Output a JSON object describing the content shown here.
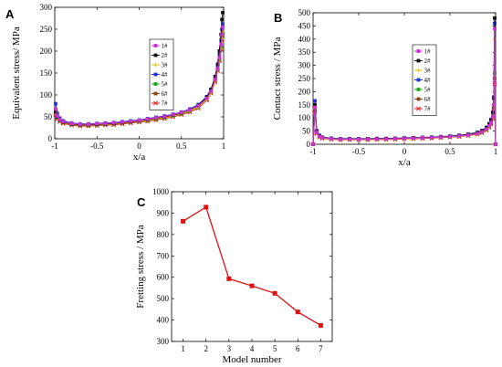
{
  "chart_data": [
    {
      "panel": "A",
      "type": "line",
      "xlabel": "x/a",
      "ylabel": "Equivalent stress/ MPa",
      "xlim": [
        -1,
        1
      ],
      "ylim": [
        0,
        300
      ],
      "xticks": [
        "-1",
        "-0.5",
        "0",
        "0.5",
        "1"
      ],
      "yticks": [
        "0",
        "50",
        "100",
        "150",
        "200",
        "250",
        "300"
      ],
      "grid": false,
      "legend_position": "center-right",
      "x": [
        -0.99,
        -0.97,
        -0.94,
        -0.9,
        -0.8,
        -0.7,
        -0.6,
        -0.5,
        -0.4,
        -0.3,
        -0.2,
        -0.1,
        0,
        0.1,
        0.2,
        0.3,
        0.4,
        0.5,
        0.6,
        0.7,
        0.8,
        0.85,
        0.9,
        0.93,
        0.95,
        0.97,
        0.98,
        0.99
      ],
      "series": [
        {
          "name": "1#",
          "color": "#cc33cc",
          "values": [
            68,
            52,
            44,
            39,
            35,
            33,
            33,
            34,
            35,
            36,
            38,
            40,
            42,
            45,
            48,
            51,
            55,
            60,
            66,
            75,
            92,
            108,
            135,
            160,
            185,
            215,
            238,
            255
          ]
        },
        {
          "name": "2#",
          "color": "#111111",
          "values": [
            62,
            50,
            43,
            38,
            34,
            32,
            32,
            33,
            34,
            35,
            37,
            39,
            41,
            44,
            47,
            50,
            54,
            59,
            66,
            76,
            95,
            112,
            142,
            170,
            200,
            238,
            272,
            288
          ]
        },
        {
          "name": "3#",
          "color": "#e0c000",
          "values": [
            60,
            48,
            42,
            37,
            33,
            31,
            31,
            32,
            33,
            34,
            36,
            38,
            40,
            42,
            45,
            48,
            52,
            57,
            63,
            72,
            90,
            105,
            132,
            158,
            182,
            205,
            228,
            245
          ]
        },
        {
          "name": "4#",
          "color": "#2233dd",
          "values": [
            80,
            58,
            47,
            41,
            36,
            34,
            34,
            35,
            36,
            37,
            39,
            41,
            43,
            46,
            49,
            52,
            56,
            61,
            68,
            78,
            96,
            113,
            140,
            165,
            192,
            225,
            250,
            262
          ]
        },
        {
          "name": "5#",
          "color": "#22aa22",
          "values": [
            64,
            50,
            43,
            38,
            34,
            32,
            32,
            33,
            34,
            35,
            37,
            39,
            41,
            43,
            46,
            49,
            53,
            58,
            64,
            73,
            91,
            107,
            134,
            158,
            182,
            210,
            230,
            240
          ]
        },
        {
          "name": "6#",
          "color": "#8b4513",
          "values": [
            60,
            48,
            41,
            36,
            32,
            30,
            30,
            31,
            32,
            33,
            35,
            37,
            39,
            41,
            44,
            47,
            51,
            56,
            62,
            71,
            89,
            105,
            132,
            157,
            180,
            208,
            228,
            242
          ]
        },
        {
          "name": "7#",
          "color": "#ee2222",
          "values": [
            55,
            45,
            39,
            35,
            31,
            29,
            29,
            30,
            31,
            32,
            34,
            36,
            38,
            40,
            43,
            46,
            50,
            55,
            61,
            70,
            88,
            104,
            130,
            155,
            178,
            205,
            224,
            236
          ]
        }
      ]
    },
    {
      "panel": "B",
      "type": "line",
      "xlabel": "x/a",
      "ylabel": "Contact stress / MPa",
      "xlim": [
        -1,
        1
      ],
      "ylim": [
        0,
        500
      ],
      "xticks": [
        "-1",
        "-0.5",
        "0",
        "0.5",
        "1"
      ],
      "yticks": [
        "0",
        "50",
        "100",
        "150",
        "200",
        "250",
        "300",
        "350",
        "400",
        "450",
        "500"
      ],
      "grid": false,
      "legend_position": "center-right",
      "x": [
        -1.0,
        -0.98,
        -0.96,
        -0.93,
        -0.9,
        -0.8,
        -0.7,
        -0.6,
        -0.5,
        -0.4,
        -0.3,
        -0.2,
        -0.1,
        0,
        0.1,
        0.2,
        0.3,
        0.4,
        0.5,
        0.6,
        0.7,
        0.8,
        0.85,
        0.9,
        0.93,
        0.95,
        0.97,
        0.98,
        0.99,
        1.0
      ],
      "series": [
        {
          "name": "1#",
          "color": "#cc33cc",
          "values": [
            0,
            140,
            45,
            30,
            25,
            21,
            19,
            19,
            19,
            19,
            20,
            20,
            21,
            22,
            23,
            24,
            25,
            27,
            29,
            31,
            35,
            41,
            47,
            58,
            70,
            82,
            105,
            150,
            440,
            0
          ]
        },
        {
          "name": "2#",
          "color": "#111111",
          "values": [
            0,
            150,
            48,
            32,
            26,
            22,
            20,
            20,
            20,
            20,
            21,
            21,
            22,
            23,
            24,
            25,
            26,
            28,
            30,
            33,
            37,
            44,
            51,
            63,
            77,
            92,
            120,
            175,
            480,
            0
          ]
        },
        {
          "name": "3#",
          "color": "#e0c000",
          "values": [
            0,
            135,
            44,
            29,
            24,
            20,
            18,
            18,
            18,
            18,
            19,
            19,
            20,
            21,
            22,
            23,
            24,
            26,
            28,
            30,
            34,
            40,
            45,
            56,
            68,
            80,
            100,
            145,
            400,
            0
          ]
        },
        {
          "name": "4#",
          "color": "#2233dd",
          "values": [
            0,
            165,
            52,
            34,
            27,
            23,
            21,
            21,
            21,
            21,
            22,
            22,
            23,
            24,
            25,
            26,
            27,
            29,
            31,
            34,
            38,
            45,
            52,
            64,
            78,
            94,
            122,
            180,
            460,
            0
          ]
        },
        {
          "name": "5#",
          "color": "#22aa22",
          "values": [
            0,
            138,
            45,
            30,
            25,
            21,
            19,
            19,
            19,
            19,
            20,
            20,
            21,
            22,
            23,
            24,
            25,
            27,
            29,
            31,
            35,
            41,
            46,
            57,
            69,
            81,
            103,
            148,
            270,
            0
          ]
        },
        {
          "name": "6#",
          "color": "#8b4513",
          "values": [
            0,
            132,
            43,
            29,
            24,
            20,
            18,
            18,
            18,
            18,
            19,
            19,
            20,
            21,
            22,
            23,
            24,
            26,
            28,
            30,
            34,
            40,
            45,
            55,
            67,
            79,
            100,
            142,
            250,
            0
          ]
        },
        {
          "name": "7#",
          "color": "#ee2222",
          "values": [
            0,
            125,
            40,
            27,
            22,
            19,
            17,
            17,
            17,
            17,
            18,
            18,
            19,
            20,
            21,
            22,
            23,
            25,
            27,
            29,
            33,
            38,
            43,
            53,
            64,
            76,
            96,
            135,
            230,
            0
          ]
        }
      ]
    },
    {
      "panel": "C",
      "type": "line",
      "xlabel": "Model number",
      "ylabel": "Fretting stress / MPa",
      "xlim": [
        0.5,
        7.5
      ],
      "ylim": [
        300,
        1000
      ],
      "xticks": [
        "1",
        "2",
        "3",
        "4",
        "5",
        "6",
        "7"
      ],
      "yticks": [
        "300",
        "400",
        "500",
        "600",
        "700",
        "800",
        "900",
        "1000"
      ],
      "grid": false,
      "x": [
        1,
        2,
        3,
        4,
        5,
        6,
        7
      ],
      "series": [
        {
          "color": "#dd1111",
          "values": [
            862,
            928,
            593,
            560,
            525,
            438,
            375
          ]
        }
      ]
    }
  ]
}
